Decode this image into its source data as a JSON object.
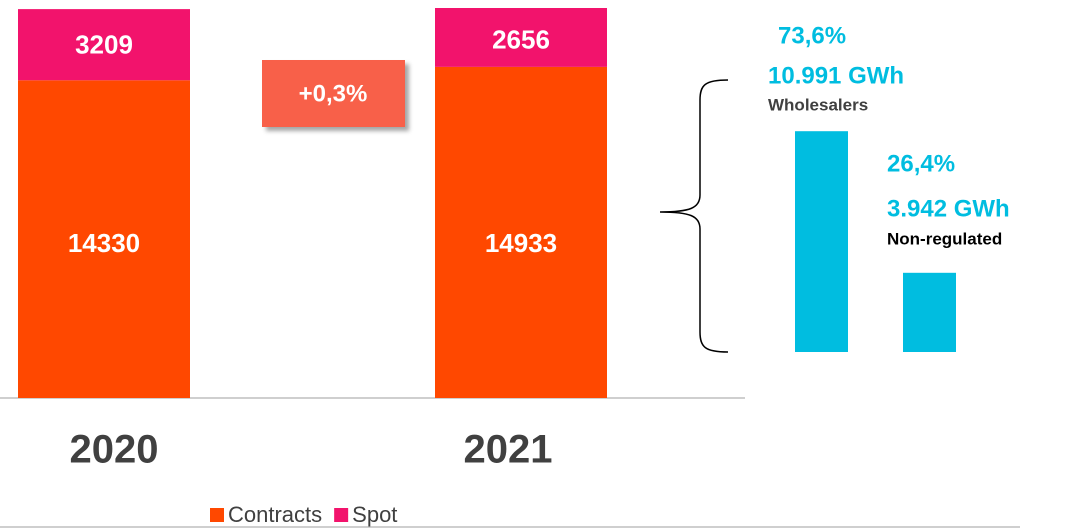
{
  "chart_data": [
    {
      "type": "stacked-bar",
      "categories": [
        "2020",
        "2021"
      ],
      "series": [
        {
          "name": "Contracts",
          "color": "#ff4800",
          "values": [
            14330,
            14933
          ]
        },
        {
          "name": "Spot",
          "color": "#f2136c",
          "values": [
            3209,
            2656
          ]
        }
      ],
      "annotations": [
        "+0,3%"
      ]
    },
    {
      "type": "bar",
      "categories": [
        "Wholesalers",
        "Non-regulated"
      ],
      "values": [
        73.6,
        26.4
      ],
      "value_labels": [
        "73,6%",
        "26,4%"
      ],
      "annotations": [
        "10.991 GWh",
        "3.942 GWh"
      ],
      "color": "#00bde0"
    }
  ]
}
